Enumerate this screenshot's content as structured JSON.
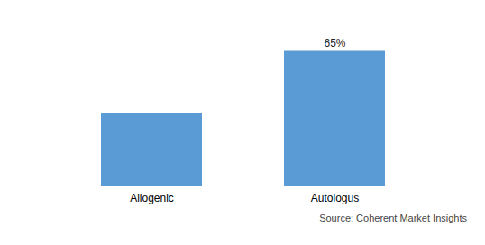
{
  "chart_data": {
    "type": "bar",
    "categories": [
      "Allogenic",
      "Autologus"
    ],
    "values": [
      35,
      65
    ],
    "value_labels": [
      null,
      "65%"
    ],
    "color": "#5b9bd5",
    "ylim": [
      0,
      80
    ],
    "grid": false,
    "tick_labels": "x",
    "annotations": [
      "Source: Coherent Market Insights"
    ]
  }
}
